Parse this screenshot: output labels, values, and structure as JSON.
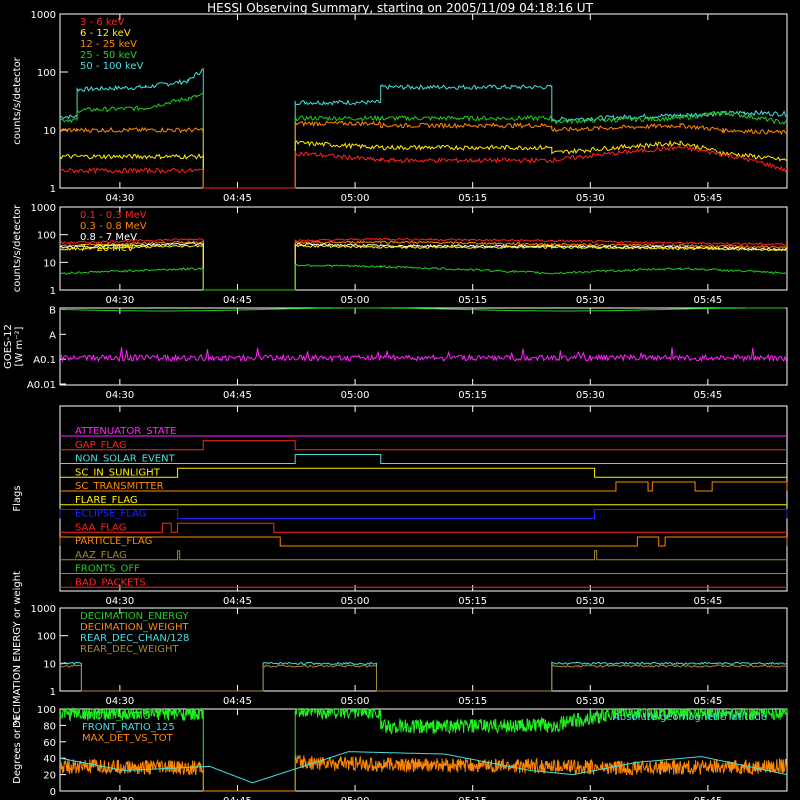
{
  "title": "HESSI Observing Summary, starting on 2005/11/09 04:18:16 UT",
  "time_ticks": [
    "04:30",
    "04:45",
    "05:00",
    "05:15",
    "05:30",
    "05:45"
  ],
  "chart_data": [
    {
      "id": "lowE",
      "type": "line",
      "ylabel": "counts/s/detector",
      "yscale": "log",
      "ylim": [
        1,
        1000
      ],
      "yticks": [
        "1",
        "10",
        "100",
        "1000"
      ],
      "legend": [
        "3 - 6 keV",
        "6 - 12 keV",
        "12 - 25 keV",
        "25 - 50 keV",
        "50 - 100 keV"
      ],
      "series": [
        {
          "name": "50 - 100 keV",
          "color": "#44e0e0",
          "points": [
            [
              0,
              17
            ],
            [
              8,
              17
            ],
            [
              8,
              50
            ],
            [
              40,
              55
            ],
            [
              60,
              70
            ],
            [
              67,
              110
            ],
            [
              67,
              1
            ],
            [
              110,
              1
            ],
            [
              110,
              30
            ],
            [
              150,
              30
            ],
            [
              150,
              55
            ],
            [
              230,
              55
            ],
            [
              230,
              15
            ],
            [
              290,
              18
            ],
            [
              320,
              20
            ],
            [
              340,
              19
            ]
          ]
        },
        {
          "name": "25 - 50 keV",
          "color": "#22cc22",
          "points": [
            [
              0,
              15
            ],
            [
              8,
              15
            ],
            [
              8,
              22
            ],
            [
              40,
              24
            ],
            [
              60,
              35
            ],
            [
              67,
              40
            ],
            [
              67,
              1
            ],
            [
              110,
              1
            ],
            [
              110,
              16
            ],
            [
              150,
              16
            ],
            [
              150,
              16
            ],
            [
              230,
              16
            ],
            [
              230,
              14
            ],
            [
              290,
              16
            ],
            [
              310,
              20
            ],
            [
              340,
              13
            ]
          ]
        },
        {
          "name": "12 - 25 keV",
          "color": "#ff8800",
          "points": [
            [
              0,
              10
            ],
            [
              8,
              10
            ],
            [
              8,
              10
            ],
            [
              67,
              10
            ],
            [
              67,
              1
            ],
            [
              110,
              1
            ],
            [
              110,
              13
            ],
            [
              150,
              13
            ],
            [
              150,
              12
            ],
            [
              230,
              12
            ],
            [
              230,
              10
            ],
            [
              290,
              12
            ],
            [
              310,
              10
            ],
            [
              340,
              9
            ]
          ]
        },
        {
          "name": "6 - 12 keV",
          "color": "#ffee00",
          "points": [
            [
              0,
              3.5
            ],
            [
              67,
              3.5
            ],
            [
              67,
              1
            ],
            [
              110,
              1
            ],
            [
              110,
              6
            ],
            [
              150,
              5
            ],
            [
              230,
              5
            ],
            [
              230,
              4
            ],
            [
              290,
              6
            ],
            [
              310,
              4
            ],
            [
              340,
              3
            ]
          ]
        },
        {
          "name": "3 - 6 keV",
          "color": "#ff2222",
          "points": [
            [
              0,
              2
            ],
            [
              67,
              2
            ],
            [
              67,
              1
            ],
            [
              110,
              1
            ],
            [
              110,
              4
            ],
            [
              150,
              3
            ],
            [
              230,
              3
            ],
            [
              290,
              5
            ],
            [
              340,
              2
            ]
          ]
        }
      ]
    },
    {
      "id": "highE",
      "type": "line",
      "ylabel": "counts/s/detector",
      "yscale": "log",
      "ylim": [
        1,
        1000
      ],
      "yticks": [
        "1",
        "10",
        "100",
        "1000"
      ],
      "legend": [
        "0.1 - 0.3 MeV",
        "0.3 - 0.8 MeV",
        "0.8 - 7 MeV",
        "7 - 20 MeV"
      ],
      "series": [
        {
          "name": "0.1 - 0.3 MeV",
          "color": "#ff2222",
          "points": [
            [
              0,
              50
            ],
            [
              67,
              70
            ],
            [
              67,
              1
            ],
            [
              110,
              1
            ],
            [
              110,
              60
            ],
            [
              150,
              70
            ],
            [
              230,
              60
            ],
            [
              290,
              50
            ],
            [
              340,
              45
            ]
          ]
        },
        {
          "name": "0.3 - 0.8 MeV",
          "color": "#ff8800",
          "points": [
            [
              0,
              40
            ],
            [
              67,
              55
            ],
            [
              67,
              1
            ],
            [
              110,
              1
            ],
            [
              110,
              50
            ],
            [
              150,
              55
            ],
            [
              230,
              45
            ],
            [
              290,
              40
            ],
            [
              340,
              35
            ]
          ]
        },
        {
          "name": "0.8 - 7 MeV",
          "color": "#ffffff",
          "points": [
            [
              0,
              35
            ],
            [
              67,
              48
            ],
            [
              67,
              1
            ],
            [
              110,
              1
            ],
            [
              110,
              45
            ],
            [
              150,
              40
            ],
            [
              230,
              38
            ],
            [
              290,
              35
            ],
            [
              340,
              30
            ]
          ]
        },
        {
          "name": "7 - 20 MeV",
          "color": "#ffee00",
          "points": [
            [
              0,
              30
            ],
            [
              67,
              40
            ],
            [
              67,
              1
            ],
            [
              110,
              1
            ],
            [
              110,
              40
            ],
            [
              150,
              35
            ],
            [
              230,
              35
            ],
            [
              290,
              32
            ],
            [
              340,
              28
            ]
          ]
        },
        {
          "name": "",
          "color": "#22cc22",
          "points": [
            [
              0,
              4
            ],
            [
              67,
              6
            ],
            [
              67,
              1
            ],
            [
              110,
              1
            ],
            [
              110,
              8
            ],
            [
              150,
              7
            ],
            [
              230,
              4
            ],
            [
              290,
              6
            ],
            [
              340,
              4
            ]
          ]
        }
      ]
    },
    {
      "id": "goes",
      "type": "line",
      "ylabel": "GOES-12 [W m⁻²]",
      "yticks": [
        "A0.01",
        "A0.1",
        "A",
        "B"
      ],
      "series": [
        {
          "name": "",
          "color": "#22cc22",
          "level": 3.0
        },
        {
          "name": "",
          "color": "#ff22ff",
          "level": 1.05
        }
      ]
    },
    {
      "id": "flags",
      "type": "line",
      "ylabel": "Flags",
      "series": [
        {
          "name": "ATTENUATOR_STATE",
          "color": "#ff22ff",
          "on": []
        },
        {
          "name": "GAP_FLAG",
          "color": "#ff2222",
          "on": [
            [
              67,
              110
            ]
          ]
        },
        {
          "name": "NON_SOLAR_EVENT",
          "color": "#44e0e0",
          "on": [
            [
              110,
              150
            ]
          ]
        },
        {
          "name": "SC_IN_SUNLIGHT",
          "color": "#ffee00",
          "on": [
            [
              55,
              250
            ]
          ]
        },
        {
          "name": "SC_TRANSMITTER",
          "color": "#ff8800",
          "on": [
            [
              260,
              275
            ],
            [
              277,
              297
            ],
            [
              305,
              340
            ]
          ]
        },
        {
          "name": "FLARE_FLAG",
          "color": "#ffee00",
          "on": []
        },
        {
          "name": "ECLIPSE_FLAG",
          "color": "#2222ff",
          "on": [
            [
              0,
              55
            ],
            [
              250,
              340
            ]
          ]
        },
        {
          "name": "SAA_FLAG",
          "color": "#ff2222",
          "on": [
            [
              48,
              52
            ],
            [
              55,
              100
            ]
          ]
        },
        {
          "name": "PARTICLE_FLAG",
          "color": "#ff8800",
          "on": [
            [
              0,
              103
            ],
            [
              270,
              280
            ],
            [
              283,
              340
            ]
          ]
        },
        {
          "name": "AAZ_FLAG",
          "color": "#aa8833",
          "on": [
            [
              55,
              56
            ],
            [
              250,
              251
            ]
          ]
        },
        {
          "name": "FRONTS_OFF",
          "color": "#22cc22",
          "on": []
        },
        {
          "name": "BAD_PACKETS",
          "color": "#ff2222",
          "on": []
        }
      ]
    },
    {
      "id": "decim",
      "type": "line",
      "ylabel": "DECIMATION ENERGY or weight",
      "yscale": "log",
      "ylim": [
        1,
        1000
      ],
      "yticks": [
        "1",
        "10",
        "100",
        "1000"
      ],
      "legend": [
        "DECIMATION_ENERGY",
        "DECIMATION_WEIGHT",
        "REAR_DEC_CHAN/128",
        "REAR_DEC_WEIGHT"
      ],
      "series": [
        {
          "name": "DECIMATION_ENERGY",
          "color": "#22cc22",
          "points": []
        },
        {
          "name": "DECIMATION_WEIGHT",
          "color": "#ff8800",
          "points": []
        },
        {
          "name": "REAR_DEC_CHAN/128",
          "color": "#44e0e0",
          "points": [
            [
              0,
              10
            ],
            [
              10,
              10
            ],
            [
              10,
              1
            ],
            [
              95,
              1
            ],
            [
              95,
              10
            ],
            [
              148,
              10
            ],
            [
              148,
              1
            ],
            [
              230,
              1
            ],
            [
              230,
              10
            ],
            [
              340,
              10
            ]
          ]
        },
        {
          "name": "REAR_DEC_WEIGHT",
          "color": "#aa8833",
          "points": [
            [
              0,
              8
            ],
            [
              10,
              8
            ],
            [
              10,
              1
            ],
            [
              95,
              1
            ],
            [
              95,
              8
            ],
            [
              148,
              8
            ],
            [
              148,
              1
            ],
            [
              230,
              1
            ],
            [
              230,
              8
            ],
            [
              340,
              8
            ]
          ]
        }
      ]
    },
    {
      "id": "ratio",
      "type": "line",
      "ylabel": "Degrees or %",
      "ylim": [
        0,
        100
      ],
      "yticks": [
        "0",
        "20",
        "40",
        "60",
        "80",
        "100"
      ],
      "legend": [
        "FRONT_RATIO",
        "FRONT_RATIO_125",
        "MAX_DET_VS_TOT"
      ],
      "annotation": "Absolute geomagnetic latitude",
      "series": [
        {
          "name": "FRONT_RATIO",
          "color": "#22ee22",
          "points": [
            [
              0,
              95
            ],
            [
              67,
              95
            ],
            [
              67,
              0
            ],
            [
              110,
              0
            ],
            [
              110,
              97
            ],
            [
              150,
              97
            ],
            [
              150,
              78
            ],
            [
              230,
              80
            ],
            [
              240,
              85
            ],
            [
              260,
              95
            ],
            [
              340,
              96
            ]
          ]
        },
        {
          "name": "MAX_DET_VS_TOT",
          "color": "#ff8800",
          "points": [
            [
              0,
              30
            ],
            [
              67,
              28
            ],
            [
              67,
              0
            ],
            [
              110,
              0
            ],
            [
              110,
              35
            ],
            [
              150,
              32
            ],
            [
              230,
              30
            ],
            [
              260,
              28
            ],
            [
              340,
              30
            ]
          ]
        },
        {
          "name": "Absolute geomagnetic latitude",
          "color": "#44e0e0",
          "points": [
            [
              0,
              40
            ],
            [
              30,
              25
            ],
            [
              70,
              30
            ],
            [
              90,
              10
            ],
            [
              135,
              48
            ],
            [
              180,
              45
            ],
            [
              220,
              25
            ],
            [
              240,
              20
            ],
            [
              270,
              35
            ],
            [
              300,
              42
            ],
            [
              340,
              20
            ]
          ]
        }
      ]
    }
  ]
}
